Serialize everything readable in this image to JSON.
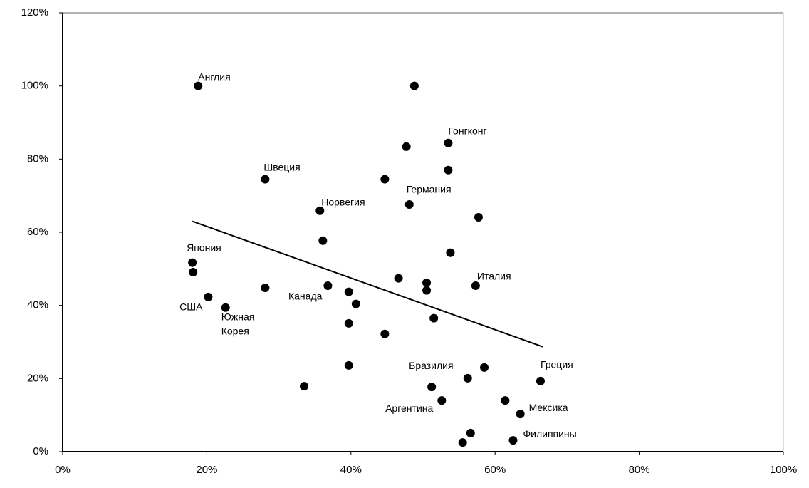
{
  "chart_data": {
    "type": "scatter",
    "x": [
      18.8,
      48.8,
      47.7,
      53.5,
      53.5,
      44.7,
      28.1,
      35.7,
      48.1,
      57.7,
      36.1,
      53.8,
      18.0,
      18.1,
      46.6,
      50.5,
      50.5,
      57.3,
      36.8,
      39.7,
      20.2,
      28.1,
      40.7,
      22.6,
      39.7,
      51.5,
      44.7,
      39.7,
      33.5,
      51.2,
      56.2,
      58.5,
      66.3,
      52.6,
      61.4,
      63.5,
      56.6,
      55.5,
      62.5
    ],
    "values": [
      100,
      100,
      83.4,
      84.4,
      77,
      74.5,
      74.5,
      65.9,
      67.6,
      64.1,
      57.7,
      54.4,
      51.7,
      49.1,
      47.4,
      46.2,
      44.1,
      45.4,
      45.4,
      43.7,
      42.3,
      44.8,
      40.4,
      39.4,
      35.1,
      36.5,
      32.2,
      23.6,
      17.9,
      17.7,
      20.1,
      23,
      19.3,
      14,
      14,
      10.3,
      5.1,
      2.5,
      3.1
    ],
    "point_labels": [
      "Англия",
      null,
      null,
      "Гонгконг",
      null,
      null,
      "Швеция",
      "Норвегия",
      "Германия",
      null,
      null,
      null,
      "Япония",
      null,
      null,
      null,
      null,
      "Италия",
      "Канада",
      null,
      "США",
      null,
      null,
      "Южная Корея",
      null,
      null,
      null,
      null,
      null,
      "Бразилия",
      null,
      null,
      "Греция",
      "Аргентина",
      null,
      "Мексика",
      null,
      null,
      "Филиппины"
    ],
    "color": "#000000",
    "trendline": {
      "x": [
        18.0,
        66.6
      ],
      "y": [
        63.0,
        28.7
      ]
    },
    "xlim": [
      0,
      100
    ],
    "xticks": [
      {
        "value": 0,
        "label": "0%"
      },
      {
        "value": 20,
        "label": "20%"
      },
      {
        "value": 40,
        "label": "40%"
      },
      {
        "value": 60,
        "label": "60%"
      },
      {
        "value": 80,
        "label": "80%"
      },
      {
        "value": 100,
        "label": "100%"
      }
    ],
    "ylim": [
      0,
      120
    ],
    "yticks": [
      {
        "value": 0,
        "label": "0%"
      },
      {
        "value": 20,
        "label": "20%"
      },
      {
        "value": 40,
        "label": "40%"
      },
      {
        "value": 60,
        "label": "60%"
      },
      {
        "value": 80,
        "label": "80%"
      },
      {
        "value": 100,
        "label": "100%"
      },
      {
        "value": 120,
        "label": "120%"
      }
    ]
  }
}
